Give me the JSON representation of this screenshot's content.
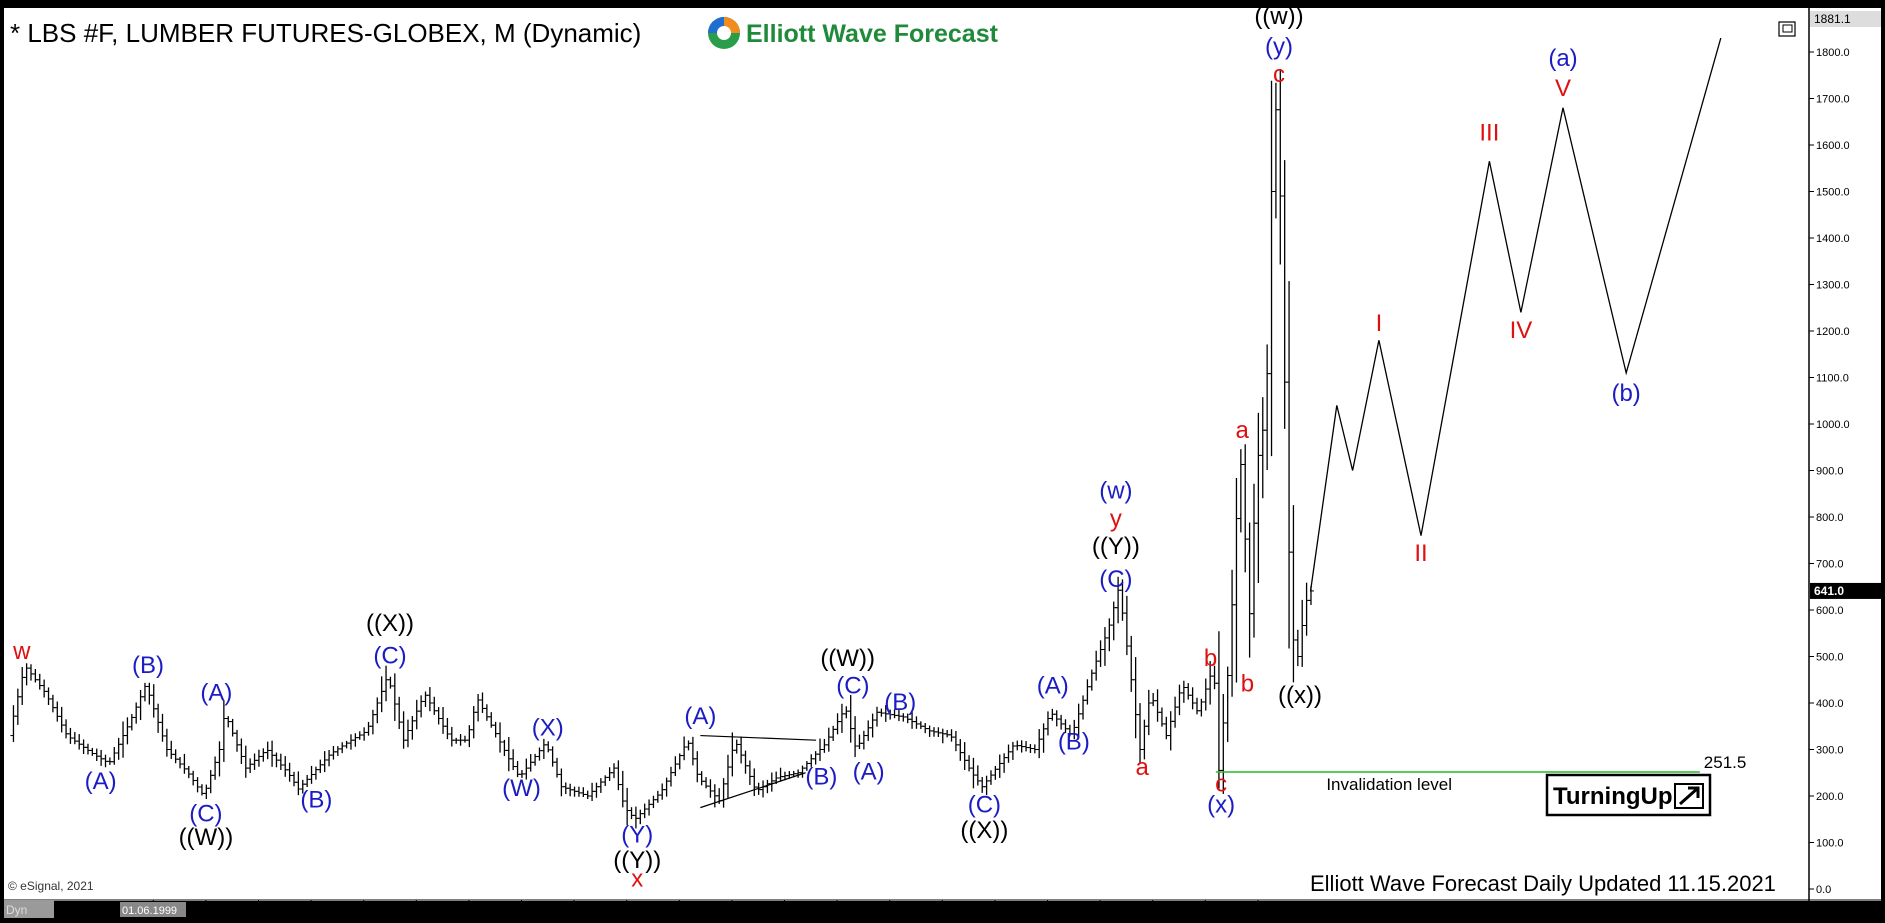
{
  "title": "* LBS #F, LUMBER FUTURES-GLOBEX, M (Dynamic)",
  "brand": "Elliott Wave Forecast",
  "footer": "Elliott Wave Forecast Daily Updated 11.15.2021",
  "copyright": "© eSignal, 2021",
  "corner_tag": "Dyn",
  "cursor_date": "01.06.1999",
  "invalidation_label": "Invalidation level",
  "turning_up": "TurningUp",
  "colors": {
    "background": "#ffffff",
    "frame": "#000000",
    "bars": "#000000",
    "blue_label": "#1c1cc4",
    "red_label": "#e01010",
    "black_label": "#000000",
    "invalidation_line": "#22bb22",
    "brand_green": "#1f8a3a"
  },
  "chart_data": {
    "type": "bar",
    "price_scale": "linear",
    "ylim": [
      0,
      1881.1
    ],
    "y_ticks": [
      "0.0",
      "100.0",
      "200.0",
      "300.0",
      "400.0",
      "500.0",
      "600.0",
      "700.0",
      "800.0",
      "900.0",
      "1000.0",
      "1100.0",
      "1200.0",
      "1300.0",
      "1400.0",
      "1500.0",
      "1600.0",
      "1700.0",
      "1800.0"
    ],
    "y_tick_values": [
      0,
      100,
      200,
      300,
      400,
      500,
      600,
      700,
      800,
      900,
      1000,
      1100,
      1200,
      1300,
      1400,
      1500,
      1600,
      1700,
      1800
    ],
    "x_ticks": [
      "1998",
      "2000",
      "2001",
      "2002",
      "2003",
      "2004",
      "2005",
      "2006",
      "2007",
      "2008",
      "2009",
      "2010",
      "2011",
      "2012",
      "2013",
      "2014",
      "2015",
      "2016",
      "2017",
      "2018",
      "2019",
      "2020",
      "2021"
    ],
    "x_tick_values": [
      1998,
      2000,
      2001,
      2002,
      2003,
      2004,
      2005,
      2006,
      2007,
      2008,
      2009,
      2010,
      2011,
      2012,
      2013,
      2014,
      2015,
      2016,
      2017,
      2018,
      2019,
      2020,
      2021
    ],
    "xlim": [
      1997.2,
      2031.4
    ],
    "last_price": "641.0",
    "top_price": "1881.1",
    "invalidation_level": 251.5,
    "invalidation_text": "251.5",
    "invalidation_range": [
      2020.2,
      2029.4
    ],
    "price_anchors": [
      [
        1997.3,
        330
      ],
      [
        1997.6,
        480
      ],
      [
        1998.0,
        420
      ],
      [
        1998.4,
        330
      ],
      [
        1998.9,
        290
      ],
      [
        1999.2,
        270
      ],
      [
        1999.6,
        360
      ],
      [
        1999.9,
        440
      ],
      [
        2000.3,
        300
      ],
      [
        2000.7,
        250
      ],
      [
        2001.0,
        200
      ],
      [
        2001.3,
        300
      ],
      [
        2001.4,
        380
      ],
      [
        2001.8,
        260
      ],
      [
        2002.2,
        300
      ],
      [
        2002.6,
        250
      ],
      [
        2002.8,
        215
      ],
      [
        2003.4,
        290
      ],
      [
        2003.8,
        320
      ],
      [
        2004.1,
        340
      ],
      [
        2004.5,
        460
      ],
      [
        2004.8,
        320
      ],
      [
        2005.2,
        420
      ],
      [
        2005.7,
        320
      ],
      [
        2006.0,
        320
      ],
      [
        2006.2,
        410
      ],
      [
        2006.8,
        280
      ],
      [
        2007.0,
        240
      ],
      [
        2007.5,
        315
      ],
      [
        2007.8,
        220
      ],
      [
        2008.3,
        200
      ],
      [
        2008.8,
        260
      ],
      [
        2009.0,
        175
      ],
      [
        2009.2,
        150
      ],
      [
        2009.7,
        210
      ],
      [
        2010.2,
        320
      ],
      [
        2010.4,
        240
      ],
      [
        2010.8,
        190
      ],
      [
        2011.1,
        320
      ],
      [
        2011.5,
        210
      ],
      [
        2011.9,
        240
      ],
      [
        2012.3,
        250
      ],
      [
        2012.8,
        310
      ],
      [
        2013.2,
        390
      ],
      [
        2013.4,
        300
      ],
      [
        2013.8,
        380
      ],
      [
        2014.3,
        370
      ],
      [
        2014.8,
        340
      ],
      [
        2015.2,
        330
      ],
      [
        2015.6,
        250
      ],
      [
        2015.8,
        220
      ],
      [
        2016.4,
        310
      ],
      [
        2016.8,
        300
      ],
      [
        2017.1,
        380
      ],
      [
        2017.5,
        330
      ],
      [
        2017.9,
        470
      ],
      [
        2018.2,
        560
      ],
      [
        2018.4,
        650
      ],
      [
        2018.6,
        480
      ],
      [
        2018.8,
        300
      ],
      [
        2019.0,
        420
      ],
      [
        2019.3,
        330
      ],
      [
        2019.6,
        440
      ],
      [
        2019.9,
        380
      ],
      [
        2020.2,
        480
      ],
      [
        2020.3,
        255
      ],
      [
        2020.5,
        500
      ],
      [
        2020.7,
        945
      ],
      [
        2020.9,
        560
      ],
      [
        2021.0,
        900
      ],
      [
        2021.2,
        1030
      ],
      [
        2021.3,
        1500
      ],
      [
        2021.4,
        1711
      ],
      [
        2021.5,
        1380
      ],
      [
        2021.6,
        800
      ],
      [
        2021.75,
        460
      ],
      [
        2021.9,
        580
      ],
      [
        2022.0,
        641
      ]
    ],
    "projection": [
      [
        2022.0,
        640
      ],
      [
        2022.5,
        1040
      ],
      [
        2022.8,
        900
      ],
      [
        2023.3,
        1180
      ],
      [
        2024.1,
        760
      ],
      [
        2025.4,
        1565
      ],
      [
        2026.0,
        1240
      ],
      [
        2026.8,
        1680
      ],
      [
        2028.0,
        1110
      ],
      [
        2029.8,
        1830
      ]
    ],
    "triangle": [
      [
        [
          2010.4,
          330
        ],
        [
          2012.6,
          320
        ]
      ],
      [
        [
          2010.4,
          175
        ],
        [
          2012.4,
          250
        ]
      ]
    ],
    "labels": [
      {
        "text": "w",
        "x": 1997.5,
        "y": 495,
        "color": "red"
      },
      {
        "text": "(A)",
        "x": 1999.0,
        "y": 215,
        "color": "blue"
      },
      {
        "text": "(B)",
        "x": 1999.9,
        "y": 465,
        "color": "blue"
      },
      {
        "text": "(A)",
        "x": 2001.2,
        "y": 405,
        "color": "blue"
      },
      {
        "text": "(C)",
        "x": 2001.0,
        "y": 145,
        "color": "blue"
      },
      {
        "text": "((W))",
        "x": 2001.0,
        "y": 95,
        "color": "black"
      },
      {
        "text": "(B)",
        "x": 2003.1,
        "y": 175,
        "color": "blue"
      },
      {
        "text": "((X))",
        "x": 2004.5,
        "y": 555,
        "color": "black"
      },
      {
        "text": "(C)",
        "x": 2004.5,
        "y": 485,
        "color": "blue"
      },
      {
        "text": "(W)",
        "x": 2007.0,
        "y": 200,
        "color": "blue"
      },
      {
        "text": "(X)",
        "x": 2007.5,
        "y": 330,
        "color": "blue"
      },
      {
        "text": "(Y)",
        "x": 2009.2,
        "y": 100,
        "color": "blue"
      },
      {
        "text": "((Y))",
        "x": 2009.2,
        "y": 45,
        "color": "black"
      },
      {
        "text": "x",
        "x": 2009.2,
        "y": 5,
        "color": "red"
      },
      {
        "text": "(A)",
        "x": 2010.4,
        "y": 355,
        "color": "blue"
      },
      {
        "text": "(B)",
        "x": 2012.7,
        "y": 225,
        "color": "blue"
      },
      {
        "text": "((W))",
        "x": 2013.2,
        "y": 480,
        "color": "black"
      },
      {
        "text": "(C)",
        "x": 2013.3,
        "y": 420,
        "color": "blue"
      },
      {
        "text": "(A)",
        "x": 2013.6,
        "y": 235,
        "color": "blue"
      },
      {
        "text": "(B)",
        "x": 2014.2,
        "y": 385,
        "color": "blue"
      },
      {
        "text": "(C)",
        "x": 2015.8,
        "y": 165,
        "color": "blue"
      },
      {
        "text": "((X))",
        "x": 2015.8,
        "y": 110,
        "color": "black"
      },
      {
        "text": "(A)",
        "x": 2017.1,
        "y": 420,
        "color": "blue"
      },
      {
        "text": "(B)",
        "x": 2017.5,
        "y": 300,
        "color": "blue"
      },
      {
        "text": "(C)",
        "x": 2018.3,
        "y": 650,
        "color": "blue"
      },
      {
        "text": "((Y))",
        "x": 2018.3,
        "y": 720,
        "color": "black"
      },
      {
        "text": "y",
        "x": 2018.3,
        "y": 780,
        "color": "red"
      },
      {
        "text": "(w)",
        "x": 2018.3,
        "y": 840,
        "color": "blue"
      },
      {
        "text": "a",
        "x": 2018.8,
        "y": 245,
        "color": "red"
      },
      {
        "text": "b",
        "x": 2020.1,
        "y": 480,
        "color": "red"
      },
      {
        "text": "c",
        "x": 2020.3,
        "y": 210,
        "color": "red"
      },
      {
        "text": "(x)",
        "x": 2020.3,
        "y": 165,
        "color": "blue"
      },
      {
        "text": "a",
        "x": 2020.7,
        "y": 970,
        "color": "red"
      },
      {
        "text": "b",
        "x": 2020.8,
        "y": 425,
        "color": "red"
      },
      {
        "text": "((x))",
        "x": 2021.8,
        "y": 400,
        "color": "black"
      },
      {
        "text": "c",
        "x": 2021.4,
        "y": 1735,
        "color": "red"
      },
      {
        "text": "(y)",
        "x": 2021.4,
        "y": 1795,
        "color": "blue"
      },
      {
        "text": "((w))",
        "x": 2021.4,
        "y": 1860,
        "color": "black"
      },
      {
        "text": "I",
        "x": 2023.3,
        "y": 1200,
        "color": "red"
      },
      {
        "text": "II",
        "x": 2024.1,
        "y": 705,
        "color": "red"
      },
      {
        "text": "III",
        "x": 2025.4,
        "y": 1610,
        "color": "red"
      },
      {
        "text": "IV",
        "x": 2026.0,
        "y": 1185,
        "color": "red"
      },
      {
        "text": "V",
        "x": 2026.8,
        "y": 1705,
        "color": "red"
      },
      {
        "text": "(a)",
        "x": 2026.8,
        "y": 1770,
        "color": "blue"
      },
      {
        "text": "(b)",
        "x": 2028.0,
        "y": 1050,
        "color": "blue"
      }
    ]
  }
}
